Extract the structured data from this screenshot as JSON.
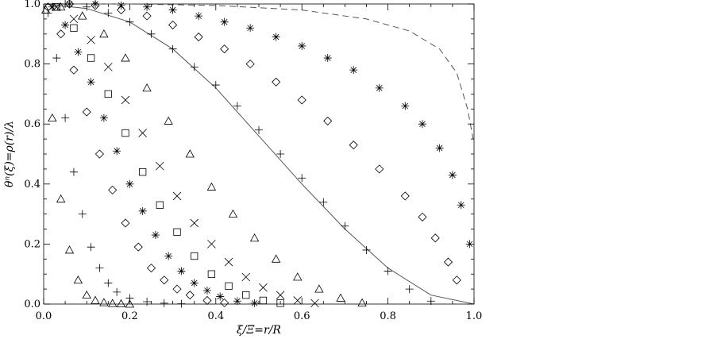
{
  "chart_data": {
    "type": "scatter",
    "title": "",
    "xlabel": "ξ/Ξ=r/R",
    "ylabel": "θⁿ(ξ)=ρ(r)/λ",
    "xlim": [
      0,
      1
    ],
    "ylim": [
      0,
      1
    ],
    "x_ticks": [
      "0.0",
      "0.2",
      "0.4",
      "0.6",
      "0.8",
      "1.0"
    ],
    "y_ticks": [
      "0.0",
      "0.2",
      "0.4",
      "0.6",
      "0.8",
      "1.0"
    ],
    "grid": false,
    "legend": "none",
    "series": [
      {
        "marker": "triangle",
        "x": [
          0.005,
          0.02,
          0.04,
          0.06,
          0.08,
          0.1,
          0.12,
          0.14,
          0.16,
          0.18,
          0.2
        ],
        "y": [
          0.98,
          0.62,
          0.35,
          0.18,
          0.08,
          0.03,
          0.012,
          0.005,
          0.002,
          0.001,
          0.0
        ]
      },
      {
        "marker": "plus",
        "x": [
          0.01,
          0.03,
          0.05,
          0.07,
          0.09,
          0.11,
          0.13,
          0.15,
          0.17,
          0.2,
          0.24,
          0.28,
          0.32
        ],
        "y": [
          0.97,
          0.82,
          0.62,
          0.44,
          0.3,
          0.19,
          0.12,
          0.07,
          0.04,
          0.02,
          0.008,
          0.003,
          0.001
        ]
      },
      {
        "marker": "diamond",
        "x": [
          0.01,
          0.04,
          0.07,
          0.1,
          0.13,
          0.16,
          0.19,
          0.22,
          0.25,
          0.28,
          0.31,
          0.34,
          0.38,
          0.42
        ],
        "y": [
          0.99,
          0.9,
          0.78,
          0.64,
          0.5,
          0.38,
          0.27,
          0.19,
          0.12,
          0.08,
          0.05,
          0.03,
          0.012,
          0.004
        ]
      },
      {
        "marker": "asterisk",
        "x": [
          0.02,
          0.05,
          0.08,
          0.11,
          0.14,
          0.17,
          0.2,
          0.23,
          0.26,
          0.29,
          0.32,
          0.35,
          0.38,
          0.41,
          0.45,
          0.49
        ],
        "y": [
          0.99,
          0.93,
          0.84,
          0.74,
          0.62,
          0.51,
          0.4,
          0.31,
          0.23,
          0.16,
          0.11,
          0.07,
          0.045,
          0.025,
          0.01,
          0.003
        ]
      },
      {
        "marker": "square",
        "x": [
          0.03,
          0.07,
          0.11,
          0.15,
          0.19,
          0.23,
          0.27,
          0.31,
          0.35,
          0.39,
          0.43,
          0.47,
          0.51,
          0.55
        ],
        "y": [
          0.99,
          0.92,
          0.82,
          0.7,
          0.57,
          0.44,
          0.33,
          0.24,
          0.16,
          0.1,
          0.06,
          0.03,
          0.012,
          0.003
        ]
      },
      {
        "marker": "cross",
        "x": [
          0.03,
          0.07,
          0.11,
          0.15,
          0.19,
          0.23,
          0.27,
          0.31,
          0.35,
          0.39,
          0.43,
          0.47,
          0.51,
          0.55,
          0.59,
          0.63
        ],
        "y": [
          0.99,
          0.95,
          0.88,
          0.79,
          0.68,
          0.57,
          0.46,
          0.36,
          0.27,
          0.2,
          0.14,
          0.09,
          0.055,
          0.03,
          0.012,
          0.003
        ]
      },
      {
        "marker": "triangle",
        "x": [
          0.04,
          0.09,
          0.14,
          0.19,
          0.24,
          0.29,
          0.34,
          0.39,
          0.44,
          0.49,
          0.54,
          0.59,
          0.64,
          0.69,
          0.74
        ],
        "y": [
          0.99,
          0.96,
          0.9,
          0.82,
          0.72,
          0.61,
          0.5,
          0.39,
          0.3,
          0.22,
          0.15,
          0.09,
          0.05,
          0.02,
          0.004
        ]
      },
      {
        "marker": "plus",
        "x": [
          0.05,
          0.1,
          0.15,
          0.2,
          0.25,
          0.3,
          0.35,
          0.4,
          0.45,
          0.5,
          0.55,
          0.6,
          0.65,
          0.7,
          0.75,
          0.8,
          0.85,
          0.9
        ],
        "y": [
          1.0,
          0.99,
          0.97,
          0.94,
          0.9,
          0.85,
          0.79,
          0.73,
          0.66,
          0.58,
          0.5,
          0.42,
          0.34,
          0.26,
          0.18,
          0.11,
          0.05,
          0.01
        ]
      },
      {
        "marker": "diamond",
        "x": [
          0.06,
          0.12,
          0.18,
          0.24,
          0.3,
          0.36,
          0.42,
          0.48,
          0.54,
          0.6,
          0.66,
          0.72,
          0.78,
          0.84,
          0.88,
          0.91,
          0.94,
          0.96
        ],
        "y": [
          1.0,
          0.995,
          0.98,
          0.96,
          0.93,
          0.89,
          0.85,
          0.8,
          0.74,
          0.68,
          0.61,
          0.53,
          0.45,
          0.36,
          0.29,
          0.22,
          0.14,
          0.08
        ]
      },
      {
        "marker": "asterisk",
        "x": [
          0.06,
          0.12,
          0.18,
          0.24,
          0.3,
          0.36,
          0.42,
          0.48,
          0.54,
          0.6,
          0.66,
          0.72,
          0.78,
          0.84,
          0.88,
          0.92,
          0.95,
          0.97,
          0.99
        ],
        "y": [
          1.0,
          1.0,
          0.995,
          0.99,
          0.98,
          0.96,
          0.94,
          0.92,
          0.89,
          0.86,
          0.82,
          0.78,
          0.72,
          0.66,
          0.6,
          0.52,
          0.43,
          0.33,
          0.2
        ]
      }
    ],
    "lines": [
      {
        "style": "solid",
        "x": [
          0.0,
          0.1,
          0.2,
          0.3,
          0.4,
          0.5,
          0.6,
          0.7,
          0.8,
          0.9,
          1.0
        ],
        "y": [
          1.0,
          0.985,
          0.94,
          0.85,
          0.72,
          0.56,
          0.4,
          0.25,
          0.12,
          0.03,
          0.0
        ]
      },
      {
        "style": "dashed",
        "x": [
          0.0,
          0.2,
          0.4,
          0.6,
          0.75,
          0.85,
          0.92,
          0.96,
          0.985,
          0.998
        ],
        "y": [
          1.0,
          1.0,
          0.995,
          0.98,
          0.95,
          0.91,
          0.85,
          0.77,
          0.65,
          0.55
        ]
      }
    ]
  }
}
